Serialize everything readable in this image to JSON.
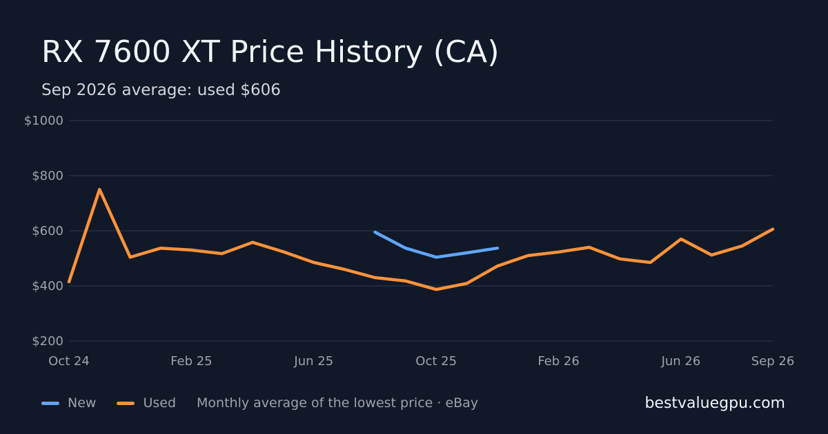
{
  "title": "RX 7600 XT Price History (CA)",
  "subtitle": "Sep 2026 average: used $606",
  "legend": {
    "new_label": "New",
    "used_label": "Used",
    "source_text": "Monthly average of the lowest price · eBay"
  },
  "brand": "bestvaluegpu.com",
  "colors": {
    "new": "#60a5fa",
    "used": "#fb923c",
    "grid": "#263041",
    "background": "#111827"
  },
  "chart_data": {
    "type": "line",
    "x": [
      "Oct 24",
      "Nov 24",
      "Dec 24",
      "Jan 25",
      "Feb 25",
      "Mar 25",
      "Apr 25",
      "May 25",
      "Jun 25",
      "Jul 25",
      "Aug 25",
      "Sep 25",
      "Oct 25",
      "Nov 25",
      "Dec 25",
      "Jan 26",
      "Feb 26",
      "Mar 26",
      "Apr 26",
      "May 26",
      "Jun 26",
      "Jul 26",
      "Aug 26",
      "Sep 26"
    ],
    "x_tick_labels": [
      "Oct 24",
      "Feb 25",
      "Jun 25",
      "Oct 25",
      "Feb 26",
      "Jun 26",
      "Sep 26"
    ],
    "y_tick_labels": [
      "$1000",
      "$800",
      "$600",
      "$400",
      "$200"
    ],
    "y_ticks": [
      1000,
      800,
      600,
      400,
      200
    ],
    "ylim": [
      200,
      1000
    ],
    "grid": true,
    "legend_position": "bottom-left",
    "series": [
      {
        "name": "New",
        "color": "#60a5fa",
        "values": [
          null,
          null,
          null,
          null,
          null,
          null,
          null,
          null,
          null,
          null,
          595,
          537,
          504,
          520,
          537,
          null,
          null,
          null,
          null,
          null,
          null,
          null,
          null,
          null
        ]
      },
      {
        "name": "Used",
        "color": "#fb923c",
        "values": [
          415,
          750,
          504,
          537,
          530,
          517,
          558,
          524,
          485,
          460,
          430,
          418,
          387,
          409,
          472,
          510,
          523,
          540,
          498,
          485,
          570,
          512,
          545,
          606
        ]
      }
    ]
  }
}
